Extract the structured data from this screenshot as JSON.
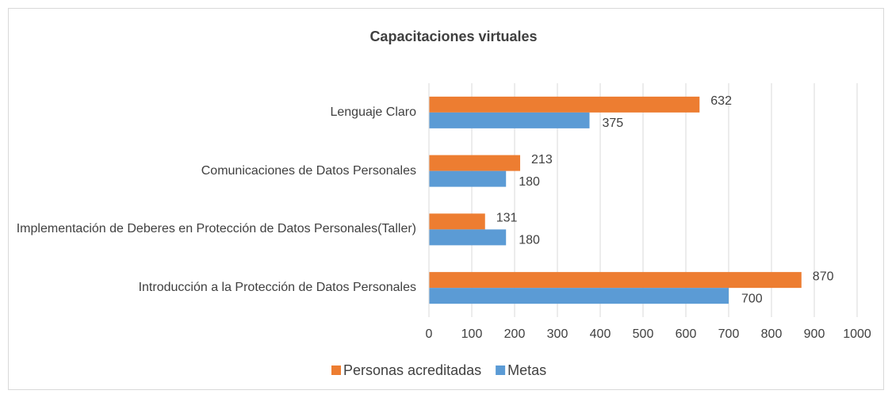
{
  "chart_data": {
    "type": "bar",
    "orientation": "horizontal",
    "title": "Capacitaciones virtuales",
    "categories": [
      "Lenguaje Claro",
      "Comunicaciones de Datos Personales",
      "Implementación de Deberes en Protección de Datos Personales(Taller)",
      "Introducción a la Protección de Datos Personales"
    ],
    "series": [
      {
        "name": "Personas acreditadas",
        "color": "#ed7d31",
        "values": [
          632,
          213,
          131,
          870
        ]
      },
      {
        "name": "Metas",
        "color": "#5b9bd5",
        "values": [
          375,
          180,
          180,
          700
        ]
      }
    ],
    "xlim": [
      0,
      1000
    ],
    "xticks": [
      0,
      100,
      200,
      300,
      400,
      500,
      600,
      700,
      800,
      900,
      1000
    ],
    "grid": true,
    "legend": "bottom"
  }
}
